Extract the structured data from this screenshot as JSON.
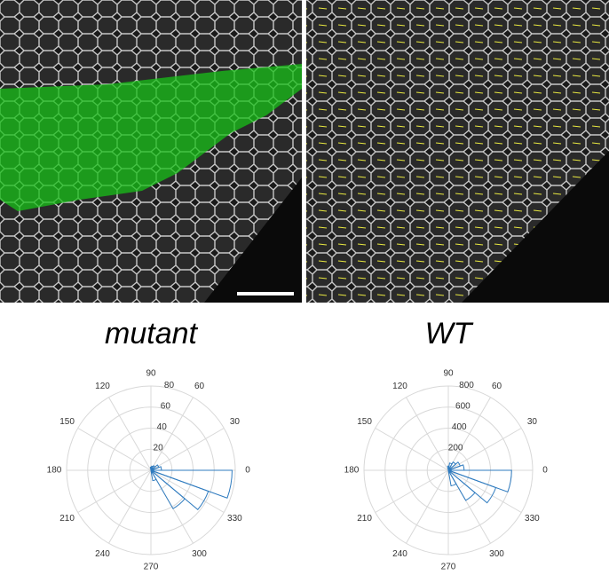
{
  "chart_data": [
    {
      "type": "polar-histogram",
      "title": "mutant",
      "color": "#2f7bbf",
      "bins": [
        -80,
        -60,
        -40,
        -20,
        0,
        20,
        40,
        60,
        80,
        100
      ],
      "values": [
        10,
        42,
        58,
        77,
        10,
        8,
        5,
        4,
        3
      ],
      "rlim": [
        0,
        80
      ],
      "rticks": [
        20,
        40,
        60,
        80
      ],
      "thetaticks": [
        0,
        30,
        60,
        90,
        120,
        150,
        180,
        210,
        240,
        270,
        300,
        330
      ]
    },
    {
      "type": "polar-histogram",
      "title": "WT",
      "color": "#2f7bbf",
      "bins": [
        -80,
        -60,
        -40,
        -20,
        0,
        20,
        40,
        60,
        80,
        100
      ],
      "values": [
        150,
        330,
        480,
        600,
        150,
        120,
        90,
        70,
        40
      ],
      "rlim": [
        0,
        800
      ],
      "rticks": [
        200,
        400,
        600,
        800
      ],
      "thetaticks": [
        0,
        30,
        60,
        90,
        120,
        150,
        180,
        210,
        240,
        270,
        300,
        330
      ]
    }
  ]
}
